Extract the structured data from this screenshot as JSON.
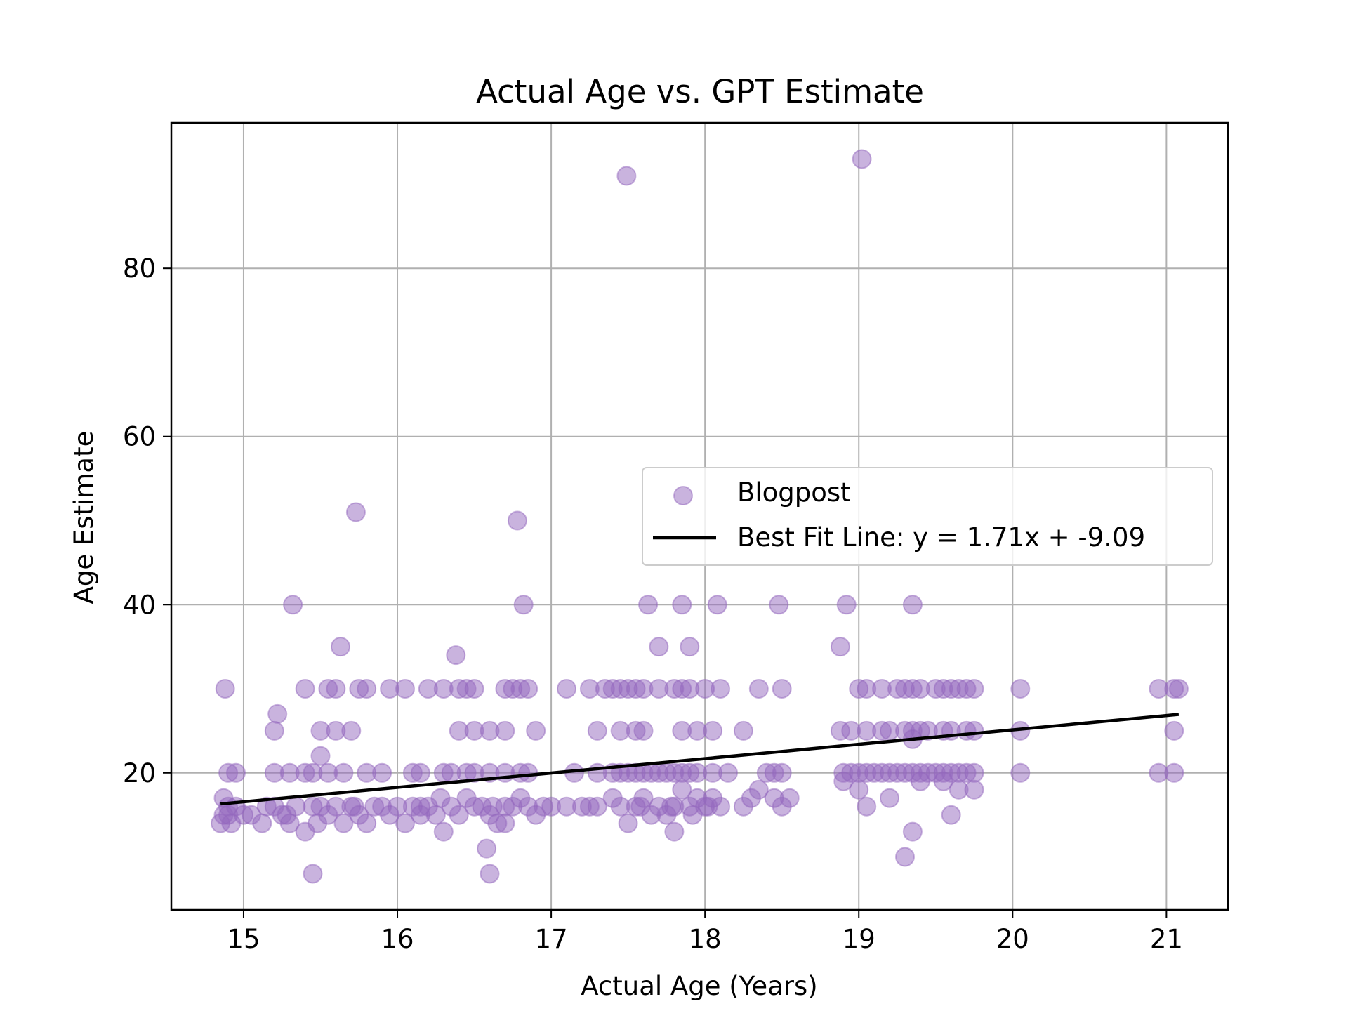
{
  "chart_data": {
    "type": "scatter",
    "title": "Actual Age vs. GPT Estimate",
    "xlabel": "Actual Age (Years)",
    "ylabel": "Age Estimate",
    "xlim": [
      14.53,
      21.4
    ],
    "ylim": [
      3.7,
      97.3
    ],
    "xticks": [
      15,
      16,
      17,
      18,
      19,
      20,
      21
    ],
    "yticks": [
      20,
      40,
      60,
      80
    ],
    "grid": true,
    "legend_position": "center-right",
    "series": [
      {
        "name": "Blogpost",
        "color": "#9467bd",
        "points": [
          [
            14.85,
            14
          ],
          [
            14.87,
            15
          ],
          [
            14.9,
            16
          ],
          [
            14.92,
            14
          ],
          [
            14.95,
            16
          ],
          [
            15.0,
            15
          ],
          [
            15.05,
            15
          ],
          [
            15.12,
            14
          ],
          [
            15.2,
            16
          ],
          [
            15.25,
            15
          ],
          [
            15.3,
            14
          ],
          [
            15.34,
            16
          ],
          [
            15.4,
            13
          ],
          [
            15.45,
            16
          ],
          [
            15.48,
            14
          ],
          [
            15.55,
            15
          ],
          [
            15.6,
            16
          ],
          [
            15.65,
            14
          ],
          [
            15.7,
            16
          ],
          [
            15.75,
            15
          ],
          [
            15.8,
            14
          ],
          [
            15.85,
            16
          ],
          [
            15.9,
            16
          ],
          [
            15.95,
            15
          ],
          [
            16.0,
            16
          ],
          [
            16.05,
            14
          ],
          [
            16.1,
            16
          ],
          [
            16.15,
            15
          ],
          [
            16.2,
            16
          ],
          [
            16.25,
            15
          ],
          [
            16.3,
            13
          ],
          [
            16.35,
            16
          ],
          [
            16.4,
            15
          ],
          [
            16.45,
            17
          ],
          [
            16.5,
            16
          ],
          [
            16.55,
            16
          ],
          [
            16.6,
            15
          ],
          [
            16.65,
            14
          ],
          [
            16.7,
            16
          ],
          [
            16.75,
            16
          ],
          [
            16.8,
            17
          ],
          [
            16.85,
            16
          ],
          [
            16.9,
            15
          ],
          [
            17.0,
            16
          ],
          [
            17.1,
            16
          ],
          [
            17.2,
            16
          ],
          [
            17.3,
            16
          ],
          [
            17.4,
            17
          ],
          [
            17.45,
            16
          ],
          [
            17.5,
            14
          ],
          [
            17.55,
            16
          ],
          [
            17.6,
            17
          ],
          [
            17.65,
            15
          ],
          [
            17.7,
            16
          ],
          [
            17.75,
            15
          ],
          [
            17.8,
            16
          ],
          [
            17.85,
            18
          ],
          [
            17.9,
            16
          ],
          [
            17.95,
            17
          ],
          [
            18.0,
            16
          ],
          [
            18.05,
            17
          ],
          [
            18.1,
            16
          ],
          [
            18.25,
            16
          ],
          [
            18.3,
            17
          ],
          [
            18.35,
            18
          ],
          [
            18.45,
            17
          ],
          [
            18.5,
            16
          ],
          [
            18.55,
            17
          ],
          [
            14.87,
            17
          ],
          [
            14.9,
            15
          ],
          [
            15.15,
            16
          ],
          [
            15.28,
            15
          ],
          [
            15.5,
            16
          ],
          [
            15.72,
            16
          ],
          [
            16.15,
            16
          ],
          [
            16.28,
            17
          ],
          [
            16.62,
            16
          ],
          [
            16.95,
            16
          ],
          [
            17.25,
            16
          ],
          [
            17.58,
            16
          ],
          [
            17.78,
            16
          ],
          [
            17.92,
            15
          ],
          [
            18.02,
            16
          ],
          [
            14.9,
            20
          ],
          [
            14.95,
            20
          ],
          [
            15.2,
            20
          ],
          [
            15.3,
            20
          ],
          [
            15.4,
            20
          ],
          [
            15.45,
            20
          ],
          [
            15.55,
            20
          ],
          [
            15.65,
            20
          ],
          [
            15.8,
            20
          ],
          [
            15.9,
            20
          ],
          [
            16.1,
            20
          ],
          [
            16.15,
            20
          ],
          [
            16.3,
            20
          ],
          [
            16.35,
            20
          ],
          [
            16.45,
            20
          ],
          [
            16.5,
            20
          ],
          [
            16.6,
            20
          ],
          [
            16.7,
            20
          ],
          [
            16.8,
            20
          ],
          [
            16.85,
            20
          ],
          [
            17.15,
            20
          ],
          [
            17.3,
            20
          ],
          [
            17.4,
            20
          ],
          [
            17.45,
            20
          ],
          [
            17.5,
            20
          ],
          [
            17.55,
            20
          ],
          [
            17.6,
            20
          ],
          [
            17.65,
            20
          ],
          [
            17.7,
            20
          ],
          [
            17.75,
            20
          ],
          [
            17.8,
            20
          ],
          [
            17.85,
            20
          ],
          [
            17.9,
            20
          ],
          [
            17.95,
            20
          ],
          [
            18.05,
            20
          ],
          [
            18.15,
            20
          ],
          [
            18.4,
            20
          ],
          [
            18.45,
            20
          ],
          [
            18.5,
            20
          ],
          [
            18.9,
            20
          ],
          [
            18.95,
            20
          ],
          [
            19.0,
            20
          ],
          [
            19.05,
            20
          ],
          [
            19.1,
            20
          ],
          [
            19.15,
            20
          ],
          [
            19.2,
            20
          ],
          [
            19.25,
            20
          ],
          [
            19.3,
            20
          ],
          [
            19.35,
            20
          ],
          [
            19.4,
            20
          ],
          [
            19.45,
            20
          ],
          [
            19.5,
            20
          ],
          [
            19.55,
            20
          ],
          [
            19.6,
            20
          ],
          [
            19.65,
            20
          ],
          [
            19.7,
            20
          ],
          [
            19.75,
            20
          ],
          [
            20.05,
            20
          ],
          [
            20.95,
            20
          ],
          [
            21.05,
            20
          ],
          [
            15.2,
            25
          ],
          [
            15.5,
            25
          ],
          [
            15.6,
            25
          ],
          [
            15.7,
            25
          ],
          [
            16.4,
            25
          ],
          [
            16.5,
            25
          ],
          [
            16.6,
            25
          ],
          [
            16.7,
            25
          ],
          [
            16.9,
            25
          ],
          [
            17.3,
            25
          ],
          [
            17.45,
            25
          ],
          [
            17.55,
            25
          ],
          [
            17.6,
            25
          ],
          [
            17.85,
            25
          ],
          [
            17.95,
            25
          ],
          [
            18.05,
            25
          ],
          [
            18.25,
            25
          ],
          [
            18.88,
            25
          ],
          [
            18.95,
            25
          ],
          [
            19.05,
            25
          ],
          [
            19.15,
            25
          ],
          [
            19.2,
            25
          ],
          [
            19.3,
            25
          ],
          [
            19.35,
            25
          ],
          [
            19.4,
            25
          ],
          [
            19.45,
            25
          ],
          [
            19.55,
            25
          ],
          [
            19.6,
            25
          ],
          [
            19.7,
            25
          ],
          [
            19.75,
            25
          ],
          [
            20.05,
            25
          ],
          [
            21.05,
            25
          ],
          [
            14.88,
            30
          ],
          [
            15.4,
            30
          ],
          [
            15.55,
            30
          ],
          [
            15.6,
            30
          ],
          [
            15.75,
            30
          ],
          [
            15.8,
            30
          ],
          [
            15.95,
            30
          ],
          [
            16.05,
            30
          ],
          [
            16.2,
            30
          ],
          [
            16.3,
            30
          ],
          [
            16.4,
            30
          ],
          [
            16.45,
            30
          ],
          [
            16.5,
            30
          ],
          [
            16.7,
            30
          ],
          [
            16.75,
            30
          ],
          [
            16.8,
            30
          ],
          [
            16.85,
            30
          ],
          [
            17.1,
            30
          ],
          [
            17.25,
            30
          ],
          [
            17.35,
            30
          ],
          [
            17.4,
            30
          ],
          [
            17.45,
            30
          ],
          [
            17.5,
            30
          ],
          [
            17.55,
            30
          ],
          [
            17.6,
            30
          ],
          [
            17.7,
            30
          ],
          [
            17.8,
            30
          ],
          [
            17.85,
            30
          ],
          [
            17.9,
            30
          ],
          [
            18.0,
            30
          ],
          [
            18.1,
            30
          ],
          [
            18.35,
            30
          ],
          [
            18.5,
            30
          ],
          [
            19.0,
            30
          ],
          [
            19.05,
            30
          ],
          [
            19.15,
            30
          ],
          [
            19.25,
            30
          ],
          [
            19.3,
            30
          ],
          [
            19.35,
            30
          ],
          [
            19.4,
            30
          ],
          [
            19.5,
            30
          ],
          [
            19.55,
            30
          ],
          [
            19.6,
            30
          ],
          [
            19.65,
            30
          ],
          [
            19.7,
            30
          ],
          [
            19.75,
            30
          ],
          [
            20.05,
            30
          ],
          [
            20.95,
            30
          ],
          [
            21.05,
            30
          ],
          [
            21.08,
            30
          ],
          [
            15.22,
            27
          ],
          [
            15.5,
            22
          ],
          [
            15.63,
            35
          ],
          [
            16.38,
            34
          ],
          [
            17.7,
            35
          ],
          [
            17.9,
            35
          ],
          [
            18.88,
            35
          ],
          [
            15.32,
            40
          ],
          [
            16.82,
            40
          ],
          [
            17.63,
            40
          ],
          [
            17.85,
            40
          ],
          [
            18.08,
            40
          ],
          [
            18.48,
            40
          ],
          [
            18.92,
            40
          ],
          [
            19.35,
            40
          ],
          [
            15.73,
            51
          ],
          [
            16.78,
            50
          ],
          [
            17.49,
            91
          ],
          [
            19.02,
            93
          ],
          [
            15.45,
            8
          ],
          [
            16.6,
            8
          ],
          [
            16.58,
            11
          ],
          [
            19.3,
            10
          ],
          [
            19.35,
            13
          ],
          [
            19.6,
            15
          ],
          [
            19.2,
            17
          ],
          [
            19.05,
            16
          ],
          [
            18.9,
            19
          ],
          [
            19.0,
            18
          ],
          [
            19.4,
            19
          ],
          [
            19.55,
            19
          ],
          [
            19.65,
            18
          ],
          [
            19.75,
            18
          ],
          [
            19.35,
            24
          ],
          [
            17.8,
            13
          ],
          [
            16.7,
            14
          ]
        ]
      }
    ],
    "fit_line": {
      "name": "Best Fit Line: y = 1.71x + -9.09",
      "color": "#000000",
      "slope": 1.71,
      "intercept": -9.09,
      "x_range": [
        14.85,
        21.08
      ]
    }
  }
}
